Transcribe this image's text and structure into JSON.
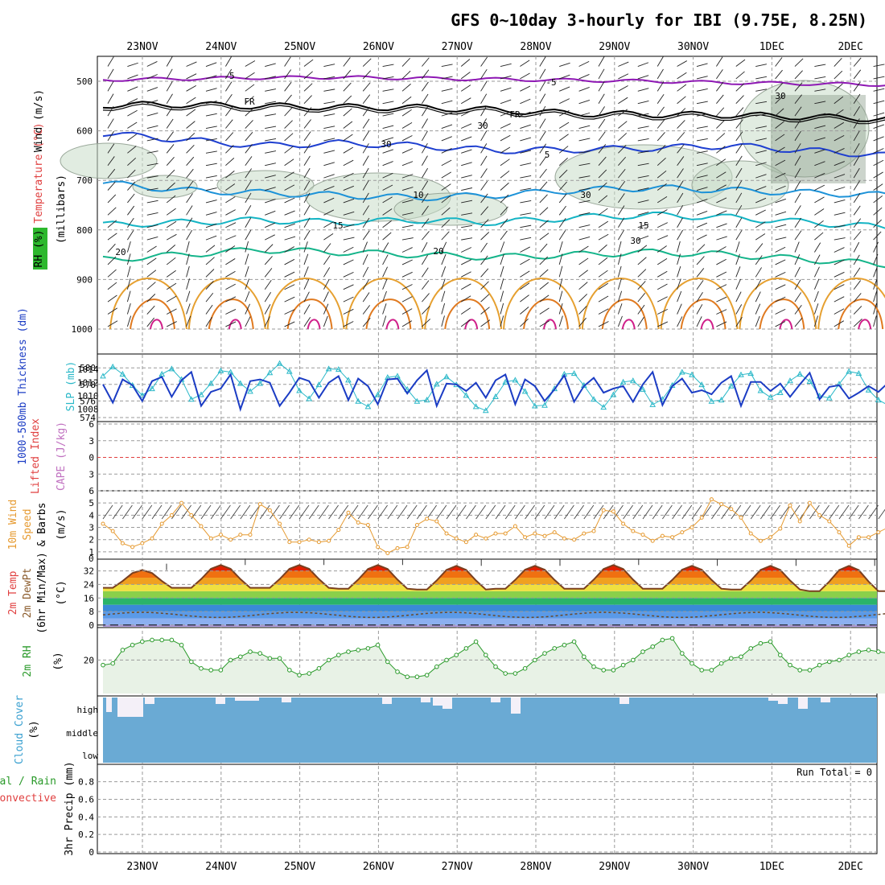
{
  "title": "GFS 0~10day 3-hourly for IBI (9.75E, 8.25N)",
  "dates": [
    "23NOV",
    "24NOV",
    "25NOV",
    "26NOV",
    "27NOV",
    "28NOV",
    "29NOV",
    "30NOV",
    "1DEC",
    "2DEC"
  ],
  "run_total_label": "Run Total = 0",
  "colors": {
    "temp_500": "#8e18b4",
    "temp_fr": "#000000",
    "temp_5": "#1e3fd0",
    "temp_10": "#1c92d8",
    "temp_15": "#14b4c4",
    "temp_20": "#14b48a",
    "temp_warm": "#e6a030",
    "thickness": "#1b3cc4",
    "slp": "#2ab8c8",
    "lifted_index": "#e04040",
    "wind10": "#e69a30",
    "temp2m_top": "#e02000",
    "rh_fill": "#c8d8c0",
    "rh_line": "#2a9a2a",
    "cloud": "#6aaad4",
    "cloud_gap": "#f4f0f8"
  },
  "chart_data": [
    {
      "panel": "upper_air",
      "type": "line",
      "ylabel_parts": [
        "Wind (m/s)",
        "Temperature (°C)",
        "RH (%)",
        "(millibars)"
      ],
      "y_ticks": [
        500,
        600,
        700,
        800,
        900,
        1000
      ],
      "ylim": [
        1000,
        455
      ],
      "contour_labels": [
        "-5",
        "FR",
        "5",
        "10",
        "15",
        "20",
        "30"
      ],
      "isotherms": [
        {
          "name": "-5",
          "values": [
            497,
            495,
            493,
            492,
            494,
            496,
            498,
            500,
            503,
            505
          ]
        },
        {
          "name": "FR",
          "values": [
            548,
            547,
            550,
            552,
            553,
            558,
            565,
            567,
            568,
            572
          ]
        },
        {
          "name": "5",
          "values": [
            605,
            618,
            630,
            625,
            630,
            640,
            638,
            635,
            630,
            640
          ]
        },
        {
          "name": "10",
          "values": [
            705,
            720,
            725,
            730,
            735,
            730,
            720,
            715,
            720,
            725
          ]
        },
        {
          "name": "15",
          "values": [
            790,
            785,
            780,
            785,
            780,
            785,
            775,
            770,
            775,
            785
          ]
        },
        {
          "name": "20",
          "values": [
            860,
            850,
            840,
            845,
            850,
            855,
            850,
            845,
            850,
            860
          ]
        }
      ]
    },
    {
      "panel": "thickness_slp",
      "type": "line",
      "ylabel_left": "1000-500mb Thickness (dm)",
      "ylabel_right": "SLP (mb)",
      "y_ticks_left": [
        574,
        576,
        578,
        580
      ],
      "y_ticks_right": [
        1008,
        1010,
        1012,
        1014
      ],
      "series": [
        {
          "name": "Thickness",
          "axis": "left",
          "values": [
            578.0,
            575.8,
            578.6,
            577.9,
            576.0,
            578.4,
            578.9,
            576.5,
            578.5,
            579.5,
            575.4,
            577.1,
            577.5,
            579.2,
            575.0,
            578.4,
            578.6,
            578.2,
            575.4,
            577.0,
            578.8,
            578.4,
            576.4,
            578.2,
            579.0,
            576.1,
            578.7,
            577.8,
            575.6,
            578.6,
            578.7,
            576.9,
            578.5,
            579.7,
            575.4,
            578.1,
            578.0,
            577.2,
            578.2,
            576.4,
            578.5,
            579.2,
            575.6,
            578.6,
            577.8,
            576.0,
            577.4,
            579.1,
            575.9,
            577.8,
            578.8,
            577.0,
            577.5,
            577.8,
            575.9,
            578.0,
            579.5,
            575.5,
            577.8,
            578.7,
            577.0,
            577.3,
            576.8,
            578.2,
            579.0,
            575.4,
            578.3,
            578.3,
            577.2,
            578.1,
            576.5,
            578.0,
            579.4,
            576.2,
            577.7,
            577.9,
            576.3,
            577.0,
            577.8,
            577.1,
            578.2
          ]
        },
        {
          "name": "SLP",
          "axis": "right",
          "values": [
            1013.0,
            1014.4,
            1013.3,
            1011.6,
            1010.1,
            1011.1,
            1013.3,
            1014.1,
            1012.5,
            1009.5,
            1010.2,
            1011.9,
            1013.8,
            1013.6,
            1011.9,
            1010.7,
            1011.9,
            1013.5,
            1014.9,
            1013.7,
            1010.8,
            1009.6,
            1011.7,
            1014.1,
            1014.0,
            1012.4,
            1009.2,
            1008.4,
            1010.2,
            1012.8,
            1013.0,
            1011.0,
            1009.2,
            1009.4,
            1011.8,
            1012.9,
            1011.7,
            1010.1,
            1008.4,
            1007.8,
            1009.9,
            1012.1,
            1012.4,
            1010.7,
            1008.5,
            1008.6,
            1011.1,
            1013.3,
            1013.4,
            1011.6,
            1009.5,
            1008.3,
            1010.2,
            1012.1,
            1012.3,
            1011.0,
            1008.7,
            1009.5,
            1011.6,
            1013.6,
            1013.2,
            1011.7,
            1009.2,
            1009.4,
            1011.5,
            1013.2,
            1013.4,
            1010.8,
            1009.8,
            1010.5,
            1012.3,
            1013.3,
            1012.2,
            1010.0,
            1009.7,
            1011.8,
            1013.7,
            1013.4,
            1010.9,
            1009.4,
            1008.6
          ]
        }
      ]
    },
    {
      "panel": "stability",
      "type": "line",
      "ylabel_left": "Lifted Index",
      "ylabel_right": "CAPE (J/kg)",
      "y_ticks": [
        "-6",
        "-3",
        "0",
        "3",
        "6"
      ],
      "reference_lines": [
        0
      ]
    },
    {
      "panel": "wind_10m",
      "type": "line",
      "ylabel": [
        "10m Wind",
        "Speed",
        "& Barbs",
        "(m/s)"
      ],
      "y_ticks": [
        1,
        2,
        3,
        4,
        5
      ],
      "ylim": [
        0.6,
        5.8
      ],
      "series": [
        {
          "name": "10m Wind Speed",
          "values": [
            3.3,
            2.7,
            1.7,
            1.4,
            1.7,
            2.1,
            3.3,
            4.0,
            5.0,
            4.0,
            3.1,
            2.1,
            2.4,
            2.0,
            2.4,
            2.4,
            4.9,
            4.4,
            3.3,
            1.8,
            1.8,
            2.0,
            1.8,
            1.9,
            2.8,
            4.2,
            3.4,
            3.2,
            1.4,
            0.9,
            1.3,
            1.4,
            3.2,
            3.7,
            3.5,
            2.5,
            2.1,
            1.8,
            2.4,
            2.1,
            2.5,
            2.5,
            3.1,
            2.2,
            2.5,
            2.3,
            2.6,
            2.1,
            2.0,
            2.5,
            2.7,
            4.4,
            4.3,
            3.3,
            2.7,
            2.4,
            1.9,
            2.3,
            2.2,
            2.6,
            3.0,
            3.8,
            5.3,
            4.9,
            4.5,
            3.8,
            2.5,
            1.9,
            2.2,
            2.9,
            4.8,
            3.5,
            5.0,
            4.0,
            3.5,
            2.6,
            1.5,
            2.2,
            2.2,
            2.6,
            3.0
          ]
        }
      ]
    },
    {
      "panel": "temp_2m",
      "type": "area",
      "ylabel": [
        "2m Temp",
        "2m DewPt",
        "(6hr Min/Max)",
        "(°C)"
      ],
      "y_ticks": [
        0,
        8,
        16,
        24,
        32
      ],
      "ylim": [
        -1,
        38
      ],
      "daily_max": [
        32.5,
        35.5,
        35.5,
        35.5,
        35.0,
        35.0,
        35.5,
        35.0,
        35.0,
        35.0
      ],
      "daily_min": [
        22.0,
        22.0,
        22.0,
        21.5,
        21.0,
        21.5,
        21.5,
        21.5,
        21.0,
        20.0
      ],
      "dewpoint_approx": 6
    },
    {
      "panel": "rh_2m",
      "type": "area",
      "ylabel": [
        "2m RH",
        "(%)"
      ],
      "y_ticks": [
        20
      ],
      "ylim": [
        0,
        38
      ],
      "series": [
        {
          "name": "2m RH",
          "values": [
            17,
            18,
            26,
            29,
            31,
            32,
            32,
            32,
            29,
            19,
            15,
            14,
            14,
            20,
            22,
            25,
            24,
            21,
            21,
            14,
            11,
            12,
            15,
            20,
            23,
            25,
            26,
            27,
            29,
            19,
            13,
            10,
            10,
            11,
            16,
            20,
            23,
            27,
            31,
            23,
            16,
            12,
            12,
            15,
            20,
            24,
            27,
            29,
            31,
            22,
            16,
            14,
            14,
            17,
            20,
            25,
            28,
            32,
            33,
            24,
            18,
            14,
            14,
            18,
            21,
            22,
            27,
            30,
            31,
            23,
            17,
            14,
            14,
            17,
            19,
            20,
            23,
            25,
            26,
            25,
            24
          ]
        }
      ]
    },
    {
      "panel": "cloud_cover",
      "type": "bar",
      "ylabel": [
        "Cloud Cover",
        "(%)"
      ],
      "layers": [
        "high",
        "middle",
        "low"
      ]
    },
    {
      "panel": "precip",
      "type": "bar",
      "ylabel_parts": [
        "Total / Rain",
        "Convective",
        "3hr Precip (mm)"
      ],
      "y_ticks": [
        0,
        0.2,
        0.4,
        0.6,
        0.8
      ],
      "ylim": [
        0,
        0.98
      ],
      "values": [
        0
      ]
    }
  ]
}
